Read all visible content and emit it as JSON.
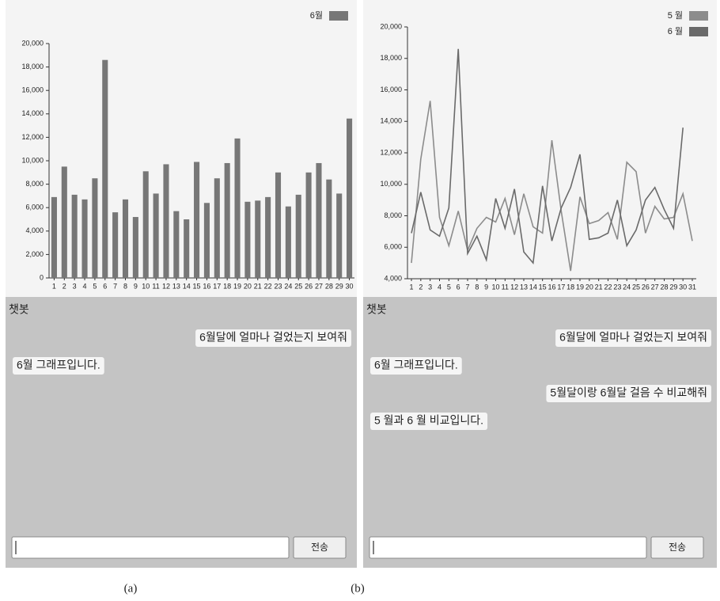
{
  "chart_data": [
    {
      "type": "bar",
      "categories": [
        "1",
        "2",
        "3",
        "4",
        "5",
        "6",
        "7",
        "8",
        "9",
        "10",
        "11",
        "12",
        "13",
        "14",
        "15",
        "16",
        "17",
        "18",
        "19",
        "20",
        "21",
        "22",
        "23",
        "24",
        "25",
        "26",
        "27",
        "28",
        "29",
        "30"
      ],
      "series": [
        {
          "name": "6월",
          "color": "#777777",
          "values": [
            6900,
            9500,
            7100,
            6700,
            8500,
            18600,
            5600,
            6700,
            5200,
            9100,
            7200,
            9700,
            5700,
            5000,
            9900,
            6400,
            8500,
            9800,
            11900,
            6500,
            6600,
            6900,
            9000,
            6100,
            7100,
            9000,
            9800,
            8400,
            7200,
            13600
          ]
        }
      ],
      "ylim": [
        0,
        20000
      ],
      "yticks": [
        0,
        {
          "value": 2000,
          "label": "2,000"
        },
        {
          "value": 4000,
          "label": "4,000"
        },
        {
          "value": 6000,
          "label": "6,000"
        },
        {
          "value": 8000,
          "label": "8,000"
        },
        {
          "value": 10000,
          "label": "10,000"
        },
        {
          "value": 12000,
          "label": "12,000"
        },
        {
          "value": 14000,
          "label": "14,000"
        },
        {
          "value": 16000,
          "label": "16,000"
        },
        {
          "value": 18000,
          "label": "18,000"
        },
        {
          "value": 20000,
          "label": "20,000"
        }
      ],
      "legend": "top-right"
    },
    {
      "type": "line",
      "categories": [
        "1",
        "2",
        "3",
        "4",
        "5",
        "6",
        "7",
        "8",
        "9",
        "10",
        "11",
        "12",
        "13",
        "14",
        "15",
        "16",
        "17",
        "18",
        "19",
        "20",
        "21",
        "22",
        "23",
        "24",
        "25",
        "26",
        "27",
        "28",
        "29",
        "30",
        "31"
      ],
      "series": [
        {
          "name": "5 월",
          "color": "#8c8c8c",
          "values": [
            5000,
            11600,
            15300,
            7900,
            6100,
            8300,
            5800,
            7200,
            7900,
            7600,
            9100,
            6800,
            9400,
            7300,
            6900,
            12800,
            8300,
            4500,
            9200,
            7500,
            7700,
            8200,
            6500,
            11400,
            10800,
            6900,
            8600,
            7800,
            7900,
            9400,
            6400
          ]
        },
        {
          "name": "6 월",
          "color": "#6a6a6a",
          "values": [
            6900,
            9500,
            7100,
            6700,
            8500,
            18600,
            5600,
            6700,
            5200,
            9100,
            7200,
            9700,
            5700,
            5000,
            9900,
            6400,
            8500,
            9800,
            11900,
            6500,
            6600,
            6900,
            9000,
            6100,
            7100,
            9000,
            9800,
            8400,
            7200,
            13600,
            null
          ]
        }
      ],
      "ylim": [
        4000,
        20000
      ],
      "yticks": [
        {
          "value": 4000,
          "label": "4,000"
        },
        {
          "value": 6000,
          "label": "6,000"
        },
        {
          "value": 8000,
          "label": "8,000"
        },
        {
          "value": 10000,
          "label": "10,000"
        },
        {
          "value": 12000,
          "label": "12,000"
        },
        {
          "value": 14000,
          "label": "14,000"
        },
        {
          "value": 16000,
          "label": "16,000"
        },
        {
          "value": 18000,
          "label": "18,000"
        },
        {
          "value": 20000,
          "label": "20,000"
        }
      ],
      "legend": "top-right"
    }
  ],
  "panels": [
    {
      "chat_title": "챗봇",
      "messages": [
        {
          "side": "right",
          "text": "6월달에 얼마나 걸었는지 보여줘"
        },
        {
          "side": "left",
          "text": "6월 그래프입니다."
        }
      ],
      "button": "전송",
      "caption": "(a)"
    },
    {
      "chat_title": "챗봇",
      "messages": [
        {
          "side": "right",
          "text": "6월달에 얼마나 걸었는지 보여줘"
        },
        {
          "side": "left",
          "text": "6월 그래프입니다."
        },
        {
          "side": "right",
          "text": "5월달이랑 6월달 걸음 수 비교해줘"
        },
        {
          "side": "left",
          "text": "5 월과 6 월 비교입니다."
        }
      ],
      "button": "전송",
      "caption": "(b)"
    }
  ]
}
